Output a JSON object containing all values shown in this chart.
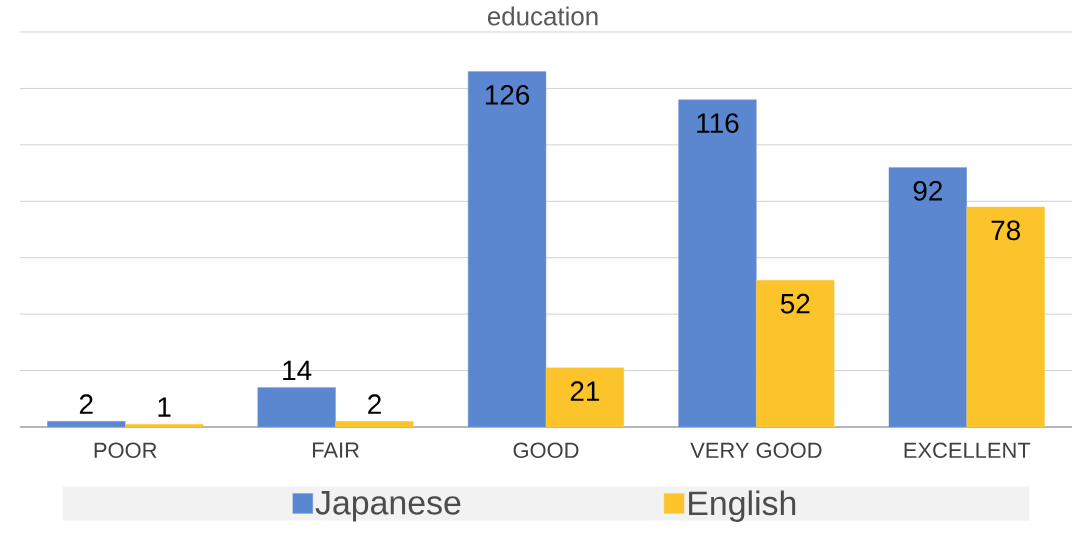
{
  "chart_data": {
    "type": "bar",
    "title": "education",
    "categories": [
      "POOR",
      "FAIR",
      "GOOD",
      "VERY GOOD",
      "EXCELLENT"
    ],
    "series": [
      {
        "name": "Japanese",
        "color": "#5b87d0",
        "values": [
          2,
          14,
          126,
          116,
          92
        ]
      },
      {
        "name": "English",
        "color": "#fbc42a",
        "values": [
          1,
          2,
          21,
          52,
          78
        ]
      }
    ],
    "ylim": [
      0,
      140
    ],
    "yticks": [
      {
        "value": 0,
        "label": null
      },
      {
        "value": 20,
        "label": null
      },
      {
        "value": 40,
        "label": null
      },
      {
        "value": 60,
        "label": null
      },
      {
        "value": 80,
        "label": null
      },
      {
        "value": 100,
        "label": null
      },
      {
        "value": 120,
        "label": null
      },
      {
        "value": 140,
        "label": null
      }
    ],
    "tick_labels": "x",
    "grid": "y",
    "legend": "bottom",
    "data_labels": true
  }
}
